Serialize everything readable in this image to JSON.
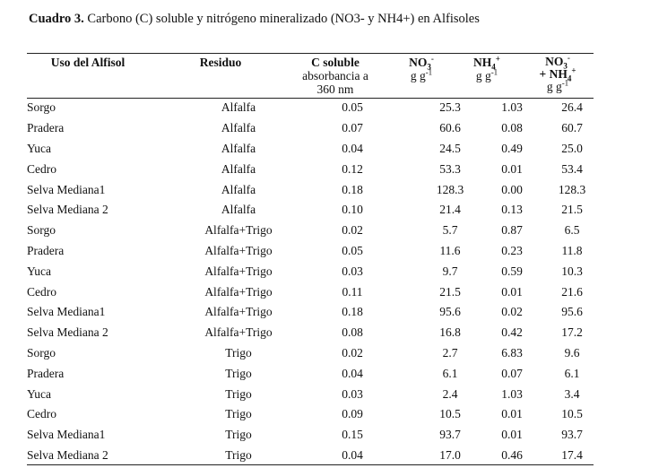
{
  "caption": {
    "label": "Cuadro 3.",
    "text": " Carbono (C) soluble y nitrógeno mineralizado (NO3- y NH4+) en Alfisoles"
  },
  "headers": {
    "uso": "Uso del Alfisol",
    "residuo": "Residuo",
    "c_soluble": "C soluble",
    "c_soluble_line2": "absorbancia a",
    "c_soluble_line3": "360 nm",
    "no3_base": "NO",
    "no3_sub": "3",
    "no3_sup": "-",
    "no3_unit": "g g",
    "no3_unit_sup": "-1",
    "nh4_base": "NH",
    "nh4_sub": "4",
    "nh4_sup": "+",
    "nh4_unit": "g g",
    "nh4_unit_sup": "-1",
    "sum_no3_base": "NO",
    "sum_no3_sub": "3",
    "sum_no3_sup": "-",
    "sum_nh4_prefix": "+ NH",
    "sum_nh4_sub": "4",
    "sum_nh4_sup": "+",
    "sum_unit": "g g",
    "sum_unit_sup": "-1"
  },
  "rows": [
    [
      "Sorgo",
      "Alfalfa",
      "0.05",
      "25.3",
      "1.03",
      "26.4"
    ],
    [
      "Pradera",
      "Alfalfa",
      "0.07",
      "60.6",
      "0.08",
      "60.7"
    ],
    [
      "Yuca",
      "Alfalfa",
      "0.04",
      "24.5",
      "0.49",
      "25.0"
    ],
    [
      "Cedro",
      "Alfalfa",
      "0.12",
      "53.3",
      "0.01",
      "53.4"
    ],
    [
      "Selva Mediana1",
      "Alfalfa",
      "0.18",
      "128.3",
      "0.00",
      "128.3"
    ],
    [
      "Selva Mediana 2",
      "Alfalfa",
      "0.10",
      "21.4",
      "0.13",
      "21.5"
    ],
    [
      "Sorgo",
      "Alfalfa+Trigo",
      "0.02",
      "5.7",
      "0.87",
      "6.5"
    ],
    [
      "Pradera",
      "Alfalfa+Trigo",
      "0.05",
      "11.6",
      "0.23",
      "11.8"
    ],
    [
      "Yuca",
      "Alfalfa+Trigo",
      "0.03",
      "9.7",
      "0.59",
      "10.3"
    ],
    [
      "Cedro",
      "Alfalfa+Trigo",
      "0.11",
      "21.5",
      "0.01",
      "21.6"
    ],
    [
      "Selva Mediana1",
      "Alfalfa+Trigo",
      "0.18",
      "95.6",
      "0.02",
      "95.6"
    ],
    [
      "Selva Mediana 2",
      "Alfalfa+Trigo",
      "0.08",
      "16.8",
      "0.42",
      "17.2"
    ],
    [
      "Sorgo",
      "Trigo",
      "0.02",
      "2.7",
      "6.83",
      "9.6"
    ],
    [
      "Pradera",
      "Trigo",
      "0.04",
      "6.1",
      "0.07",
      "6.1"
    ],
    [
      "Yuca",
      "Trigo",
      "0.03",
      "2.4",
      "1.03",
      "3.4"
    ],
    [
      "Cedro",
      "Trigo",
      "0.09",
      "10.5",
      "0.01",
      "10.5"
    ],
    [
      "Selva Mediana1",
      "Trigo",
      "0.15",
      "93.7",
      "0.01",
      "93.7"
    ],
    [
      "Selva Mediana 2",
      "Trigo",
      "0.04",
      "17.0",
      "0.46",
      "17.4"
    ]
  ]
}
